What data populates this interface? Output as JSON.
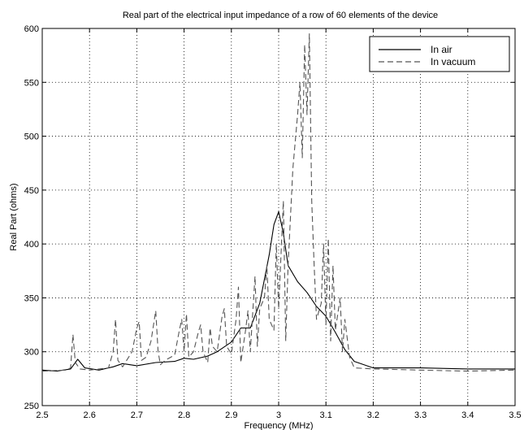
{
  "chart_data": {
    "type": "line",
    "title": "Real part of the electrical input impedance of a row of 60 elements of the device",
    "xlabel": "Frequency (MHz)",
    "ylabel": "Real Part (ohms)",
    "xlim": [
      2.5,
      3.5
    ],
    "ylim": [
      250,
      600
    ],
    "xticks": [
      2.5,
      2.6,
      2.7,
      2.8,
      2.9,
      3.0,
      3.1,
      3.2,
      3.3,
      3.4,
      3.5
    ],
    "xtick_labels": [
      "2.5",
      "2.6",
      "2.7",
      "2.8",
      "2.9",
      "3",
      "3.1",
      "3.2",
      "3.3",
      "3.4",
      "3.5"
    ],
    "yticks": [
      250,
      300,
      350,
      400,
      450,
      500,
      550,
      600
    ],
    "ytick_labels": [
      "250",
      "300",
      "350",
      "400",
      "450",
      "500",
      "550",
      "600"
    ],
    "grid": true,
    "legend_position": "top-right",
    "series": [
      {
        "name": "In air",
        "style": "solid",
        "color": "#000000",
        "x": [
          2.5,
          2.53,
          2.56,
          2.575,
          2.59,
          2.62,
          2.65,
          2.67,
          2.7,
          2.74,
          2.78,
          2.8,
          2.82,
          2.85,
          2.87,
          2.9,
          2.92,
          2.94,
          2.96,
          2.98,
          2.99,
          3.0,
          3.01,
          3.02,
          3.04,
          3.06,
          3.08,
          3.1,
          3.12,
          3.14,
          3.16,
          3.2,
          3.3,
          3.4,
          3.5
        ],
        "y": [
          283,
          282,
          284,
          293,
          285,
          283,
          286,
          289,
          287,
          290,
          291,
          294,
          293,
          296,
          300,
          309,
          322,
          322,
          345,
          390,
          418,
          430,
          410,
          380,
          365,
          355,
          342,
          333,
          318,
          302,
          291,
          285,
          285,
          284,
          284
        ]
      },
      {
        "name": "In vacuum",
        "style": "dashed",
        "color": "#555555",
        "x": [
          2.5,
          2.55,
          2.56,
          2.565,
          2.57,
          2.58,
          2.6,
          2.64,
          2.65,
          2.655,
          2.66,
          2.67,
          2.69,
          2.7,
          2.705,
          2.71,
          2.72,
          2.73,
          2.74,
          2.745,
          2.75,
          2.76,
          2.78,
          2.79,
          2.795,
          2.8,
          2.805,
          2.81,
          2.82,
          2.83,
          2.835,
          2.84,
          2.85,
          2.855,
          2.86,
          2.87,
          2.88,
          2.885,
          2.89,
          2.9,
          2.91,
          2.915,
          2.92,
          2.93,
          2.935,
          2.94,
          2.95,
          2.955,
          2.96,
          2.97,
          2.975,
          2.98,
          2.99,
          2.995,
          3.0,
          3.01,
          3.015,
          3.02,
          3.03,
          3.04,
          3.045,
          3.05,
          3.055,
          3.06,
          3.065,
          3.07,
          3.075,
          3.08,
          3.09,
          3.095,
          3.1,
          3.105,
          3.11,
          3.115,
          3.12,
          3.13,
          3.135,
          3.14,
          3.15,
          3.16,
          3.2,
          3.3,
          3.4,
          3.5
        ],
        "y": [
          282,
          283,
          285,
          316,
          290,
          284,
          283,
          285,
          300,
          330,
          292,
          286,
          300,
          322,
          328,
          292,
          295,
          310,
          338,
          300,
          288,
          292,
          297,
          320,
          330,
          300,
          335,
          295,
          300,
          318,
          325,
          300,
          290,
          322,
          305,
          300,
          332,
          340,
          305,
          298,
          330,
          360,
          290,
          320,
          338,
          300,
          370,
          305,
          340,
          350,
          380,
          330,
          320,
          400,
          340,
          440,
          310,
          380,
          470,
          520,
          550,
          480,
          585,
          520,
          595,
          440,
          380,
          330,
          345,
          400,
          325,
          405,
          310,
          380,
          320,
          350,
          300,
          330,
          295,
          285,
          284,
          283,
          282,
          283
        ]
      }
    ]
  }
}
